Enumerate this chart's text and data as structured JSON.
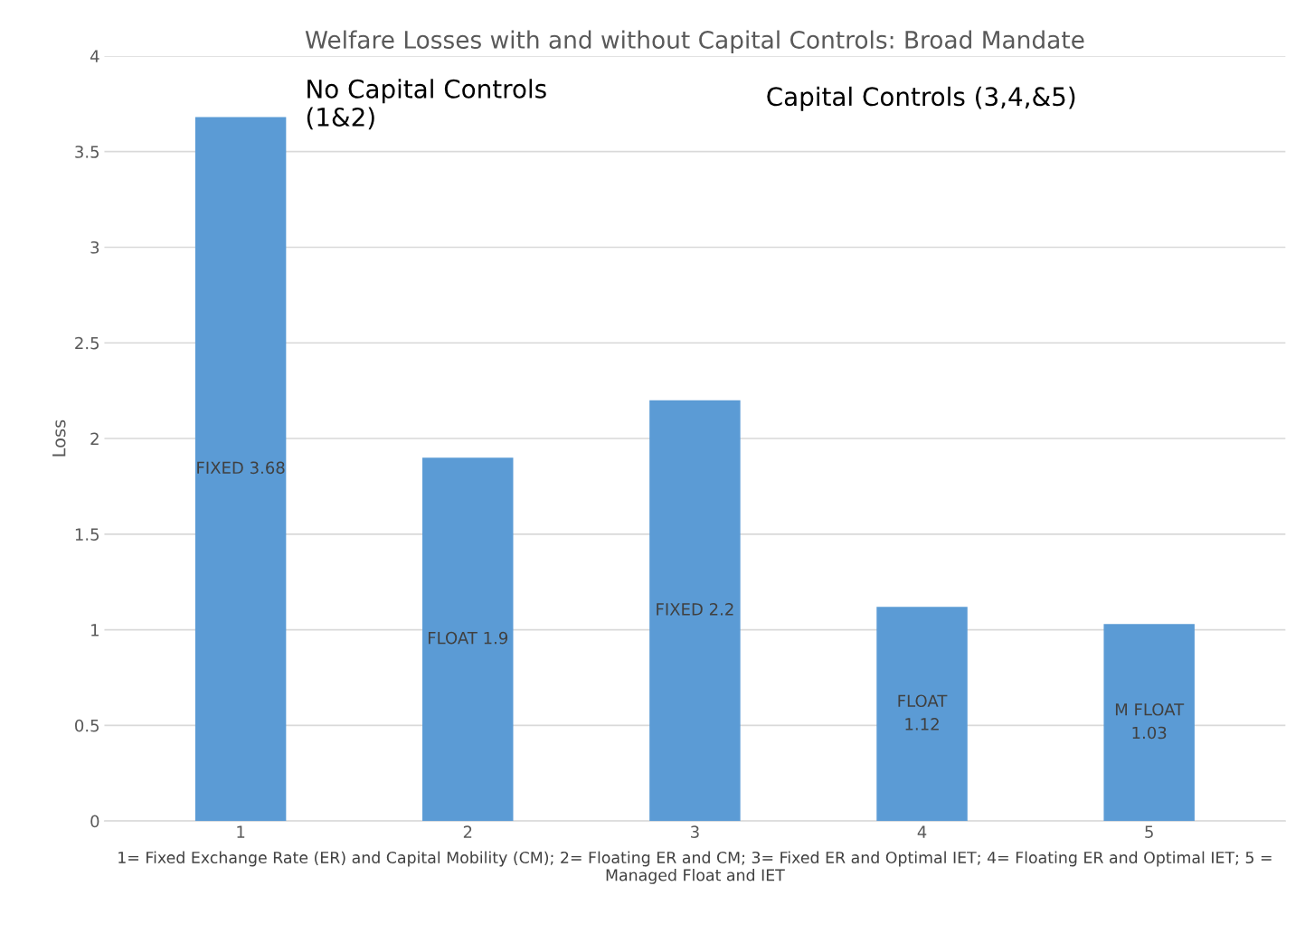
{
  "chart_data": {
    "type": "bar",
    "title": "Welfare Losses with and without Capital Controls: Broad Mandate",
    "ylabel": "Loss",
    "xlabel": "1= Fixed Exchange Rate (ER) and Capital Mobility (CM); 2= Floating ER and CM; 3= Fixed ER and Optimal IET; 4= Floating ER and Optimal IET; 5 = Managed Float and IET",
    "categories": [
      "1",
      "2",
      "3",
      "4",
      "5"
    ],
    "values": [
      3.68,
      1.9,
      2.2,
      1.12,
      1.03
    ],
    "value_labels": [
      "FIXED 3.68",
      "FLOAT 1.9",
      "FIXED 2.2",
      "FLOAT\n1.12",
      "M FLOAT\n1.03"
    ],
    "color": "#5b9bd5",
    "ylim": [
      0,
      4
    ],
    "yticks": [
      0,
      0.5,
      1,
      1.5,
      2,
      2.5,
      3,
      3.5,
      4
    ],
    "grid": "y",
    "annotations": [
      "No Capital Controls\n(1&2)",
      "Capital Controls (3,4,&5)"
    ]
  }
}
